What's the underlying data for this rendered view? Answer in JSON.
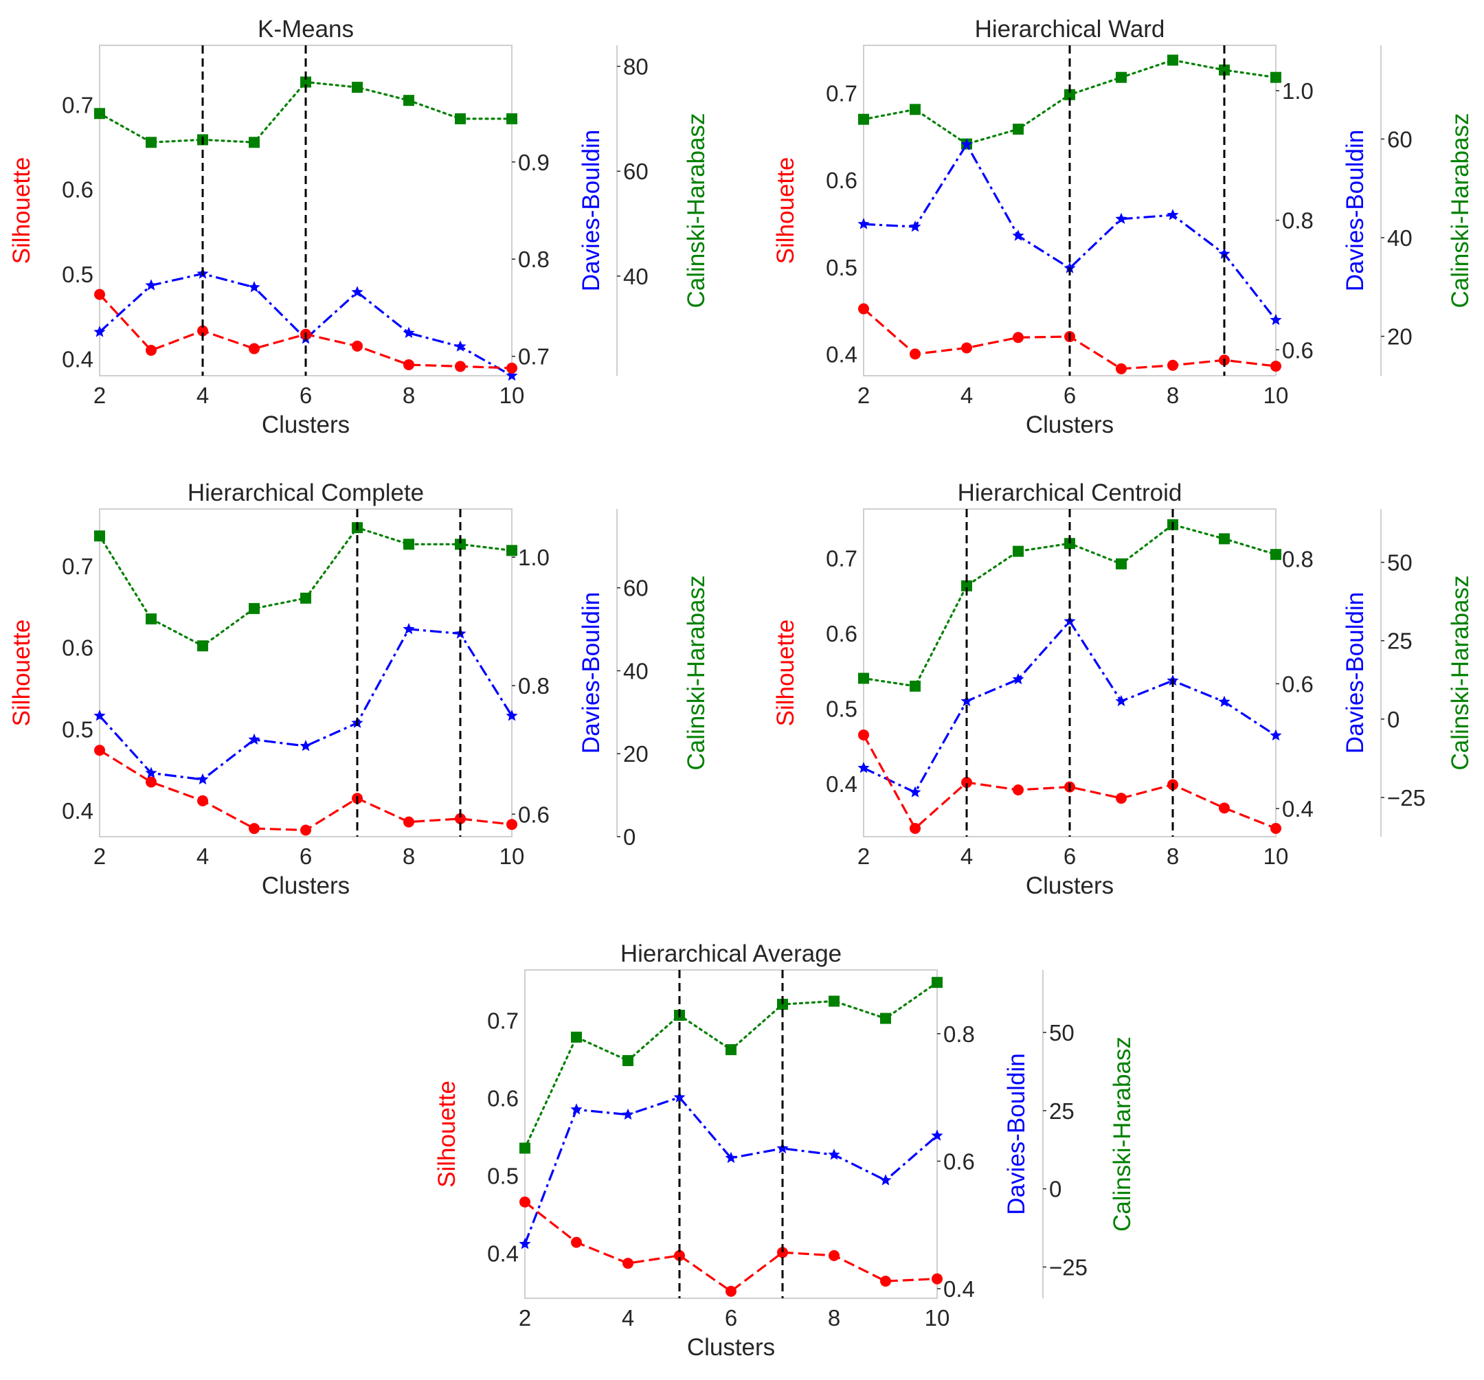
{
  "chart_data": [
    {
      "type": "line",
      "title": "K-Means",
      "xlabel": "Clusters",
      "x": [
        2,
        3,
        4,
        5,
        6,
        7,
        8,
        9,
        10
      ],
      "xticks": [
        2,
        4,
        6,
        8,
        10
      ],
      "xlim": [
        2,
        10
      ],
      "vlines": [
        4,
        6
      ],
      "axes": [
        {
          "label": "Silhouette",
          "color": "#ff0000",
          "ylim": [
            0.38,
            0.77
          ],
          "ticks": [
            0.4,
            0.5,
            0.6,
            0.7
          ],
          "tick_labels": [
            "0.4",
            "0.5",
            "0.6",
            "0.7"
          ]
        },
        {
          "label": "Davies-Bouldin",
          "color": "#0000ff",
          "ylim": [
            0.68,
            1.02
          ],
          "ticks": [
            0.7,
            0.8,
            0.9
          ],
          "tick_labels": [
            "0.7",
            "0.8",
            "0.9"
          ]
        },
        {
          "label": "Calinski-Harabasz",
          "color": "#008000",
          "ylim": [
            21,
            84
          ],
          "ticks": [
            40,
            60,
            80
          ],
          "tick_labels": [
            "40",
            "60",
            "80"
          ]
        }
      ],
      "series": [
        {
          "name": "Silhouette",
          "axis": 0,
          "marker": "circle",
          "dash": "dashed",
          "color": "#ff0000",
          "values": [
            0.476,
            0.41,
            0.433,
            0.412,
            0.429,
            0.415,
            0.393,
            0.391,
            0.389
          ]
        },
        {
          "name": "Davies-Bouldin",
          "axis": 1,
          "marker": "star",
          "dash": "dashdot",
          "color": "#0000ff",
          "values": [
            0.725,
            0.773,
            0.785,
            0.771,
            0.718,
            0.766,
            0.724,
            0.71,
            0.68
          ]
        },
        {
          "name": "Calinski-Harabasz",
          "axis": 2,
          "marker": "square",
          "dash": "dotted",
          "color": "#008000",
          "values": [
            71,
            65.5,
            66,
            65.5,
            77,
            76,
            73.5,
            70,
            70
          ]
        }
      ]
    },
    {
      "type": "line",
      "title": "Hierarchical Ward",
      "xlabel": "Clusters",
      "x": [
        2,
        3,
        4,
        5,
        6,
        7,
        8,
        9,
        10
      ],
      "xticks": [
        2,
        4,
        6,
        8,
        10
      ],
      "xlim": [
        2,
        10
      ],
      "vlines": [
        6,
        9
      ],
      "axes": [
        {
          "label": "Silhouette",
          "color": "#ff0000",
          "ylim": [
            0.375,
            0.755
          ],
          "ticks": [
            0.4,
            0.5,
            0.6,
            0.7
          ],
          "tick_labels": [
            "0.4",
            "0.5",
            "0.6",
            "0.7"
          ]
        },
        {
          "label": "Davies-Bouldin",
          "color": "#0000ff",
          "ylim": [
            0.56,
            1.07
          ],
          "ticks": [
            0.6,
            0.8,
            1.0
          ],
          "tick_labels": [
            "0.6",
            "0.8",
            "1.0"
          ]
        },
        {
          "label": "Calinski-Harabasz",
          "color": "#008000",
          "ylim": [
            12,
            79
          ],
          "ticks": [
            20,
            40,
            60
          ],
          "tick_labels": [
            "20",
            "40",
            "60"
          ]
        }
      ],
      "series": [
        {
          "name": "Silhouette",
          "axis": 0,
          "marker": "circle",
          "dash": "dashed",
          "color": "#ff0000",
          "values": [
            0.452,
            0.4,
            0.407,
            0.419,
            0.42,
            0.383,
            0.387,
            0.393,
            0.386
          ]
        },
        {
          "name": "Davies-Bouldin",
          "axis": 1,
          "marker": "star",
          "dash": "dashdot",
          "color": "#0000ff",
          "values": [
            0.794,
            0.79,
            0.917,
            0.776,
            0.726,
            0.802,
            0.808,
            0.748,
            0.646
          ]
        },
        {
          "name": "Calinski-Harabasz",
          "axis": 2,
          "marker": "square",
          "dash": "dotted",
          "color": "#008000",
          "values": [
            64,
            66,
            59,
            62,
            69,
            72.5,
            76,
            74,
            72.5
          ]
        }
      ]
    },
    {
      "type": "line",
      "title": "Hierarchical Complete",
      "xlabel": "Clusters",
      "x": [
        2,
        3,
        4,
        5,
        6,
        7,
        8,
        9,
        10
      ],
      "xticks": [
        2,
        4,
        6,
        8,
        10
      ],
      "xlim": [
        2,
        10
      ],
      "vlines": [
        7,
        9
      ],
      "axes": [
        {
          "label": "Silhouette",
          "color": "#ff0000",
          "ylim": [
            0.368,
            0.77
          ],
          "ticks": [
            0.4,
            0.5,
            0.6,
            0.7
          ],
          "tick_labels": [
            "0.4",
            "0.5",
            "0.6",
            "0.7"
          ]
        },
        {
          "label": "Davies-Bouldin",
          "color": "#0000ff",
          "ylim": [
            0.565,
            1.075
          ],
          "ticks": [
            0.6,
            0.8,
            1.0
          ],
          "tick_labels": [
            "0.6",
            "0.8",
            "1.0"
          ]
        },
        {
          "label": "Calinski-Harabasz",
          "color": "#008000",
          "ylim": [
            0,
            79
          ],
          "ticks": [
            0,
            20,
            40,
            60
          ],
          "tick_labels": [
            "0",
            "20",
            "40",
            "60"
          ]
        }
      ],
      "series": [
        {
          "name": "Silhouette",
          "axis": 0,
          "marker": "circle",
          "dash": "dashed",
          "color": "#ff0000",
          "values": [
            0.474,
            0.435,
            0.412,
            0.378,
            0.376,
            0.415,
            0.386,
            0.39,
            0.383
          ]
        },
        {
          "name": "Davies-Bouldin",
          "axis": 1,
          "marker": "star",
          "dash": "dashdot",
          "color": "#0000ff",
          "values": [
            0.753,
            0.664,
            0.654,
            0.716,
            0.706,
            0.742,
            0.888,
            0.881,
            0.753
          ]
        },
        {
          "name": "Calinski-Harabasz",
          "axis": 2,
          "marker": "square",
          "dash": "dotted",
          "color": "#008000",
          "values": [
            72.5,
            52.5,
            46,
            55,
            57.5,
            74.5,
            70.5,
            70.5,
            69
          ]
        }
      ]
    },
    {
      "type": "line",
      "title": "Hierarchical Centroid",
      "xlabel": "Clusters",
      "x": [
        2,
        3,
        4,
        5,
        6,
        7,
        8,
        9,
        10
      ],
      "xticks": [
        2,
        4,
        6,
        8,
        10
      ],
      "xlim": [
        2,
        10
      ],
      "vlines": [
        4,
        6,
        8
      ],
      "axes": [
        {
          "label": "Silhouette",
          "color": "#ff0000",
          "ylim": [
            0.33,
            0.765
          ],
          "ticks": [
            0.4,
            0.5,
            0.6,
            0.7
          ],
          "tick_labels": [
            "0.4",
            "0.5",
            "0.6",
            "0.7"
          ]
        },
        {
          "label": "Davies-Bouldin",
          "color": "#0000ff",
          "ylim": [
            0.355,
            0.88
          ],
          "ticks": [
            0.4,
            0.6,
            0.8
          ],
          "tick_labels": [
            "0.4",
            "0.6",
            "0.8"
          ]
        },
        {
          "label": "Calinski-Harabasz",
          "color": "#008000",
          "ylim": [
            -37.5,
            67
          ],
          "ticks": [
            -25,
            0,
            25,
            50
          ],
          "tick_labels": [
            "−25",
            "0",
            "25",
            "50"
          ]
        }
      ],
      "series": [
        {
          "name": "Silhouette",
          "axis": 0,
          "marker": "circle",
          "dash": "dashed",
          "color": "#ff0000",
          "values": [
            0.465,
            0.341,
            0.402,
            0.392,
            0.396,
            0.381,
            0.399,
            0.368,
            0.341
          ]
        },
        {
          "name": "Davies-Bouldin",
          "axis": 1,
          "marker": "star",
          "dash": "dashdot",
          "color": "#0000ff",
          "values": [
            0.465,
            0.426,
            0.572,
            0.607,
            0.7,
            0.572,
            0.605,
            0.571,
            0.517
          ]
        },
        {
          "name": "Calinski-Harabasz",
          "axis": 2,
          "marker": "square",
          "dash": "dotted",
          "color": "#008000",
          "values": [
            13,
            10.5,
            42.5,
            53.5,
            56,
            49.5,
            62,
            57.5,
            52.5
          ]
        }
      ]
    },
    {
      "type": "line",
      "title": "Hierarchical Average",
      "xlabel": "Clusters",
      "x": [
        2,
        3,
        4,
        5,
        6,
        7,
        8,
        9,
        10
      ],
      "xticks": [
        2,
        4,
        6,
        8,
        10
      ],
      "xlim": [
        2,
        10
      ],
      "vlines": [
        5,
        7
      ],
      "axes": [
        {
          "label": "Silhouette",
          "color": "#ff0000",
          "ylim": [
            0.342,
            0.765
          ],
          "ticks": [
            0.4,
            0.5,
            0.6,
            0.7
          ],
          "tick_labels": [
            "0.4",
            "0.5",
            "0.6",
            "0.7"
          ]
        },
        {
          "label": "Davies-Bouldin",
          "color": "#0000ff",
          "ylim": [
            0.385,
            0.9
          ],
          "ticks": [
            0.4,
            0.6,
            0.8
          ],
          "tick_labels": [
            "0.4",
            "0.6",
            "0.8"
          ]
        },
        {
          "label": "Calinski-Harabasz",
          "color": "#008000",
          "ylim": [
            -35,
            70
          ],
          "ticks": [
            -25,
            0,
            25,
            50
          ],
          "tick_labels": [
            "−25",
            "0",
            "25",
            "50"
          ]
        }
      ],
      "series": [
        {
          "name": "Silhouette",
          "axis": 0,
          "marker": "circle",
          "dash": "dashed",
          "color": "#ff0000",
          "values": [
            0.466,
            0.414,
            0.387,
            0.397,
            0.351,
            0.401,
            0.397,
            0.364,
            0.367
          ]
        },
        {
          "name": "Davies-Bouldin",
          "axis": 1,
          "marker": "star",
          "dash": "dashdot",
          "color": "#0000ff",
          "values": [
            0.47,
            0.681,
            0.673,
            0.7,
            0.605,
            0.62,
            0.61,
            0.57,
            0.64
          ]
        },
        {
          "name": "Calinski-Harabasz",
          "axis": 2,
          "marker": "square",
          "dash": "dotted",
          "color": "#008000",
          "values": [
            13,
            48.5,
            41,
            55.5,
            44.5,
            59,
            60,
            54.5,
            66
          ]
        }
      ]
    }
  ]
}
